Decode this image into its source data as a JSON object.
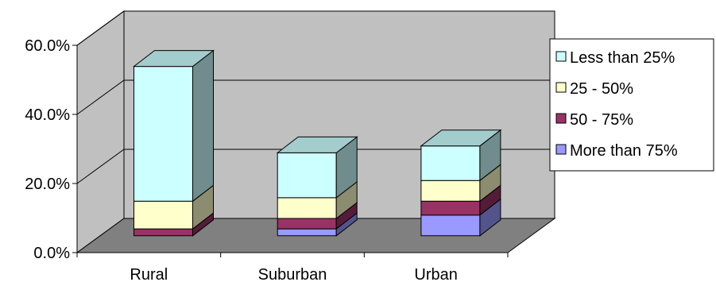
{
  "chart_data": {
    "type": "bar",
    "variant": "stacked-3d",
    "title": "",
    "xlabel": "",
    "ylabel": "",
    "categories": [
      "Rural",
      "Suburban",
      "Urban"
    ],
    "ylim": [
      0,
      60
    ],
    "yticks": [
      0,
      20,
      40,
      60
    ],
    "ytick_labels": [
      "0.0%",
      "20.0%",
      "40.0%",
      "60.0%"
    ],
    "grid": true,
    "legend_position": "right",
    "series": [
      {
        "name": "More than 75%",
        "values": [
          0,
          2,
          6
        ],
        "color": "#9999ff"
      },
      {
        "name": "50 - 75%",
        "values": [
          2,
          3,
          4
        ],
        "color": "#993366"
      },
      {
        "name": "25 - 50%",
        "values": [
          8,
          6,
          6
        ],
        "color": "#ffffcc"
      },
      {
        "name": "Less than 25%",
        "values": [
          39,
          13,
          10
        ],
        "color": "#ccffff"
      }
    ],
    "legend_order": [
      "Less than 25%",
      "25 - 50%",
      "50 - 75%",
      "More than 75%"
    ],
    "wall_color": "#c0c0c0",
    "floor_color": "#808080"
  }
}
